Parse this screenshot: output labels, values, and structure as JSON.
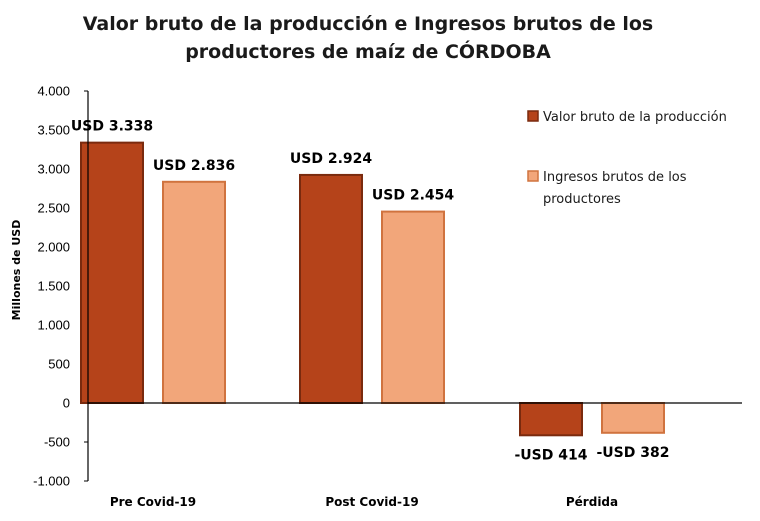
{
  "chart_data": {
    "type": "bar",
    "title": [
      "Valor bruto de la producción e Ingresos brutos de los",
      "productores de maíz de CÓRDOBA"
    ],
    "ylabel": "Millones de USD",
    "xlabel": "",
    "ylim": [
      -1000,
      4000
    ],
    "ytick_labels": [
      "4.000",
      "3.500",
      "3.000",
      "2.500",
      "2.000",
      "1.500",
      "1.000",
      "500",
      "0",
      "-500",
      "-1.000"
    ],
    "ytick_values": [
      4000,
      3500,
      3000,
      2500,
      2000,
      1500,
      1000,
      500,
      0,
      -500,
      -1000
    ],
    "categories": [
      "Pre Covid-19",
      "Post Covid-19",
      "Pérdida"
    ],
    "legend_position": "right",
    "grid": false,
    "series": [
      {
        "name": "Valor bruto de la producción",
        "legend_lines": [
          "Valor bruto de la producción"
        ],
        "color": "#B5431A",
        "edge": "#7A2A0E",
        "values": [
          3338,
          2924,
          -414
        ],
        "labels": [
          "USD 3.338",
          "USD 2.924",
          "-USD 414"
        ]
      },
      {
        "name": "Ingresos brutos de los productores",
        "legend_lines": [
          "Ingresos brutos de los",
          "productores"
        ],
        "color": "#F2A67A",
        "edge": "#D0733F",
        "values": [
          2836,
          2454,
          -382
        ],
        "labels": [
          "USD 2.836",
          "USD 2.454",
          "-USD 382"
        ]
      }
    ]
  }
}
